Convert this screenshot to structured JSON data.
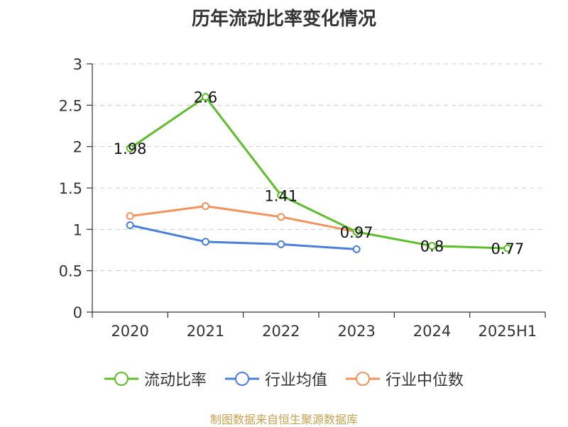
{
  "title": "历年流动比率变化情况",
  "source": "制图数据来自恒生聚源数据库",
  "colors": {
    "grid": "#cccccc",
    "axis": "#333333",
    "source_text": "#c8a24e"
  },
  "chart_data": {
    "type": "line",
    "title": "历年流动比率变化情况",
    "categories": [
      "2020",
      "2021",
      "2022",
      "2023",
      "2024",
      "2025H1"
    ],
    "ylim": [
      0,
      3
    ],
    "yticks": [
      0,
      0.5,
      1,
      1.5,
      2,
      2.5,
      3
    ],
    "ytick_labels": [
      "0",
      "0.5",
      "1",
      "1.5",
      "2",
      "2.5",
      "3"
    ],
    "grid": true,
    "legend_position": "bottom",
    "series": [
      {
        "name": "流动比率",
        "color": "#5cbf2a",
        "values": [
          1.98,
          2.6,
          1.41,
          0.97,
          0.8,
          0.77
        ],
        "labels": [
          "1.98",
          "2.6",
          "1.41",
          "0.97",
          "0.8",
          "0.77"
        ]
      },
      {
        "name": "行业均值",
        "color": "#4a7fdb",
        "values": [
          1.05,
          0.85,
          0.82,
          0.76,
          null,
          null
        ]
      },
      {
        "name": "行业中位数",
        "color": "#f5915a",
        "values": [
          1.16,
          1.28,
          1.15,
          0.97,
          null,
          null
        ]
      }
    ]
  }
}
